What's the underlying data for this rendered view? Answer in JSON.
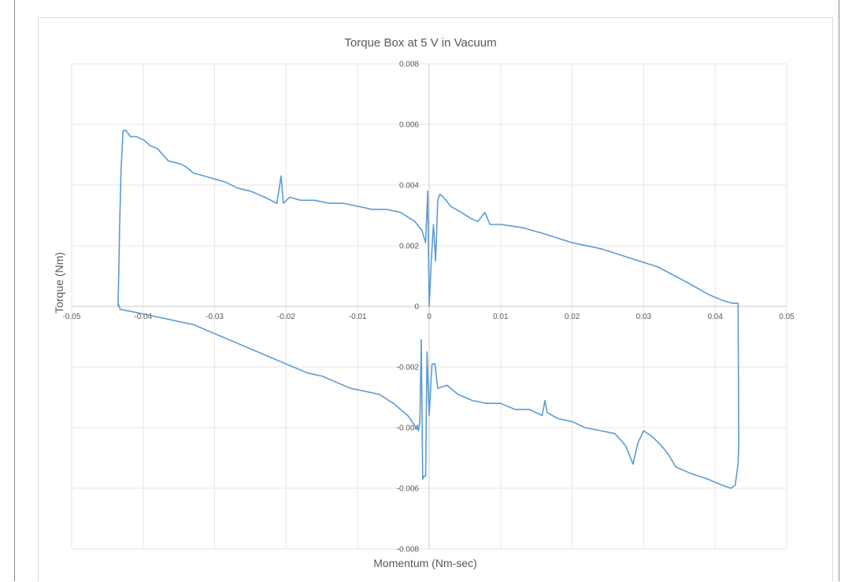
{
  "chart_data": {
    "type": "scatter",
    "title": "Torque Box at 5 V in Vacuum",
    "xlabel": "Momentum (Nm-sec)",
    "ylabel": "Torque (Nm)",
    "xlim": [
      -0.05,
      0.05
    ],
    "ylim": [
      -0.008,
      0.008
    ],
    "x_ticks": [
      "-0.05",
      "-0.04",
      "-0.03",
      "-0.02",
      "-0.01",
      "0",
      "0.01",
      "0.02",
      "0.03",
      "0.04",
      "0.05"
    ],
    "y_ticks": [
      "-0.008",
      "-0.006",
      "-0.004",
      "-0.002",
      "0",
      "0.002",
      "0.004",
      "0.006",
      "0.008"
    ],
    "grid": true,
    "legend": "none",
    "series_color": "#5b9bd5",
    "series": [
      {
        "x": [
          -0.0435,
          -0.0433,
          -0.0431,
          -0.0428,
          -0.0424,
          -0.0418,
          -0.041,
          -0.04,
          -0.039,
          -0.038,
          -0.0365,
          -0.0348,
          -0.034,
          -0.033,
          -0.0315,
          -0.03,
          -0.0285,
          -0.0268,
          -0.025,
          -0.023,
          -0.0213,
          -0.0207,
          -0.0204,
          -0.0195,
          -0.018,
          -0.016,
          -0.014,
          -0.012,
          -0.01,
          -0.008,
          -0.006,
          -0.004,
          -0.002,
          -0.001,
          -0.0005,
          -0.0002,
          0.0,
          0.0003,
          0.0006,
          0.0009,
          0.0012,
          0.0015,
          0.002,
          0.003,
          0.0045,
          0.0058,
          0.0068,
          0.0078,
          0.0085,
          0.01,
          0.013,
          0.016,
          0.02,
          0.024,
          0.028,
          0.032,
          0.036,
          0.039,
          0.041,
          0.0425,
          0.0432,
          0.0433,
          0.0432,
          0.0428,
          0.0422,
          0.041,
          0.039,
          0.0365,
          0.0345,
          0.0335,
          0.0325,
          0.0312,
          0.03,
          0.0292,
          0.0285,
          0.0275,
          0.026,
          0.024,
          0.0218,
          0.02,
          0.018,
          0.0165,
          0.0162,
          0.0158,
          0.014,
          0.012,
          0.01,
          0.008,
          0.006,
          0.004,
          0.0025,
          0.0012,
          0.0008,
          0.0004,
          0.0,
          -0.0003,
          -0.0005,
          -0.0007,
          -0.0009,
          -0.0011,
          -0.0013,
          -0.0015,
          -0.003,
          -0.005,
          -0.007,
          -0.009,
          -0.011,
          -0.013,
          -0.015,
          -0.017,
          -0.019,
          -0.021,
          -0.023,
          -0.025,
          -0.027,
          -0.029,
          -0.031,
          -0.033,
          -0.035,
          -0.037,
          -0.039,
          -0.041,
          -0.0432,
          -0.0435,
          -0.0435
        ],
        "y": [
          0.0,
          0.0025,
          0.0045,
          0.0058,
          0.0058,
          0.0056,
          0.0056,
          0.0055,
          0.0053,
          0.0052,
          0.0048,
          0.0047,
          0.0046,
          0.0044,
          0.0043,
          0.0042,
          0.0041,
          0.0039,
          0.0038,
          0.0036,
          0.0034,
          0.0043,
          0.0034,
          0.0036,
          0.0035,
          0.0035,
          0.0034,
          0.0034,
          0.0033,
          0.0032,
          0.0032,
          0.0031,
          0.0028,
          0.0025,
          0.0021,
          0.0038,
          0.0,
          0.0015,
          0.0027,
          0.0015,
          0.0035,
          0.0037,
          0.0036,
          0.0033,
          0.0031,
          0.0029,
          0.0028,
          0.0031,
          0.0027,
          0.0027,
          0.0026,
          0.0024,
          0.0021,
          0.0019,
          0.0016,
          0.0013,
          0.0008,
          0.0004,
          0.0002,
          0.0001,
          0.0001,
          -0.0045,
          -0.0052,
          -0.0059,
          -0.006,
          -0.0059,
          -0.0057,
          -0.0055,
          -0.0053,
          -0.0049,
          -0.0046,
          -0.0043,
          -0.0041,
          -0.0045,
          -0.0052,
          -0.0046,
          -0.0042,
          -0.0041,
          -0.004,
          -0.0038,
          -0.0037,
          -0.0035,
          -0.0031,
          -0.0036,
          -0.0034,
          -0.0034,
          -0.0032,
          -0.0032,
          -0.0031,
          -0.0029,
          -0.0026,
          -0.0027,
          -0.0019,
          -0.0019,
          -0.0036,
          -0.0015,
          -0.0056,
          -0.0056,
          -0.0057,
          -0.0011,
          -0.0038,
          -0.0041,
          -0.0036,
          -0.0032,
          -0.0029,
          -0.0028,
          -0.0027,
          -0.0025,
          -0.0023,
          -0.0022,
          -0.002,
          -0.0018,
          -0.0016,
          -0.0014,
          -0.0012,
          -0.001,
          -0.0008,
          -0.0006,
          -0.0005,
          -0.0004,
          -0.0003,
          -0.0002,
          -0.0001,
          0.0001,
          0.0
        ]
      }
    ]
  }
}
